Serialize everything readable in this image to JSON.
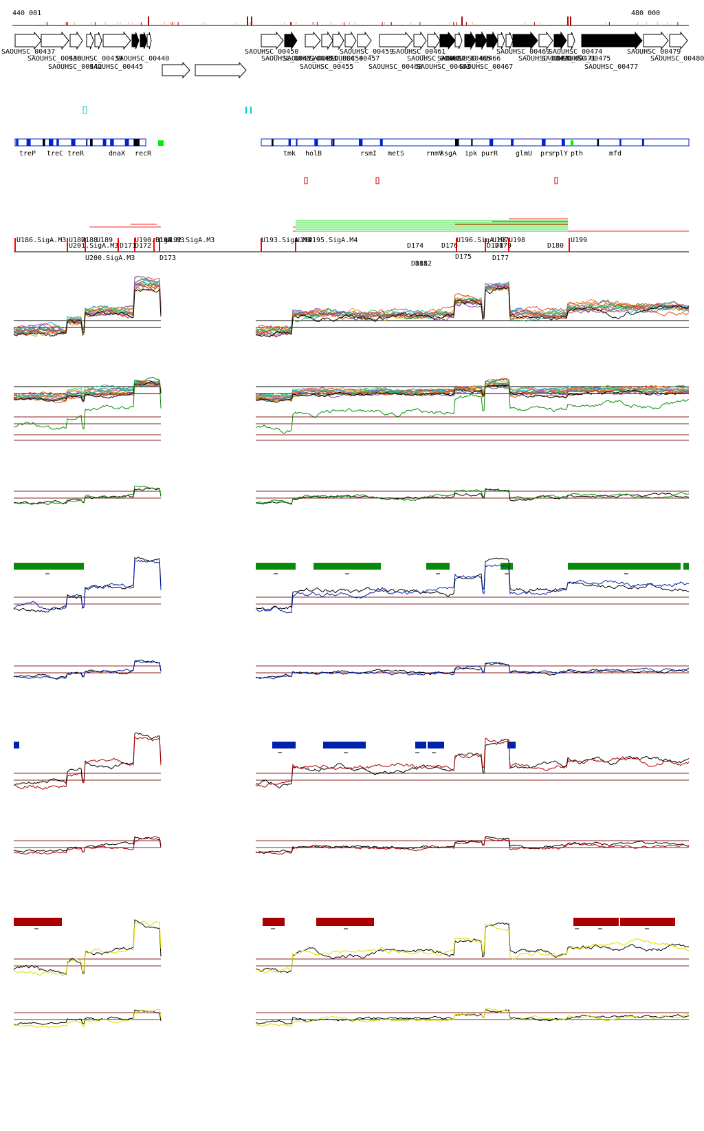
{
  "coords": {
    "start": "440 001",
    "end": "480 000"
  },
  "gene_labels": [
    "SAOUHSC_00437",
    "SAOUHSC_00438",
    "SAOUHSC_00439",
    "SAOUHSC_00440",
    "SAOUHSC_00442",
    "SAOUHSC_00445",
    "SAOUHSC_00450",
    "SAOUHSC_00451",
    "SAOUHSC_00453",
    "SAOUHSC_00454",
    "SAOUHSC_00455",
    "SAOUHSC_00457",
    "SAOUHSC_00459",
    "SAOUHSC_00460",
    "SAOUHSC_00461",
    "SAOUHSC_00462",
    "SAOUHSC_00463",
    "SAOUHSC_00465",
    "SAOUHSC_00466",
    "SAOUHSC_00467",
    "SAOUHSC_00469",
    "SAOUHSC_00470",
    "SAOUHSC_00471",
    "SAOUHSC_00474",
    "SAOUHSC_00475",
    "SAOUHSC_00477",
    "SAOUHSC_00479",
    "SAOUHSC_00480"
  ],
  "gene_names": [
    "treP",
    "treC",
    "treR",
    "dnaX",
    "recR",
    "tmk",
    "holB",
    "rsmI",
    "metS",
    "rnmV",
    "ksgA",
    "ipk",
    "purR",
    "glmU",
    "prs",
    "rplY",
    "pth",
    "mfd"
  ],
  "promoter_labels": [
    "U186.SigA.M3",
    "U187",
    "U188",
    "U189",
    "U190.SigA.M3",
    "U191",
    "U192.SigA.M3",
    "U193.SigA.M3",
    "U194",
    "U195.SigA.M4",
    "U196.SigA.M3",
    "U197",
    "U198",
    "U199",
    "U200.SigA.M3",
    "U201.SigA.M3",
    "D171",
    "D172",
    "D173",
    "D174",
    "D175",
    "D176",
    "D177",
    "D178",
    "D179",
    "D180",
    "D181",
    "D182"
  ],
  "colors": {
    "gene_black": "#000000",
    "unit_blue": "#0022cc",
    "green": "#0a8a0a",
    "blue": "#0022aa",
    "red": "#aa0000",
    "yellow": "#dddd00",
    "cyan": "#00cccc"
  }
}
